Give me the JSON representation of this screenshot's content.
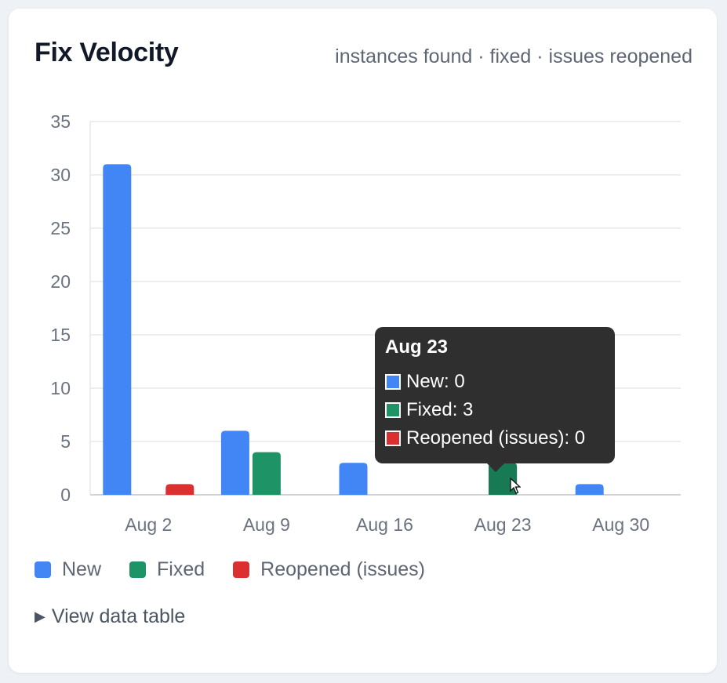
{
  "card": {
    "title": "Fix Velocity",
    "subtitle": "instances found · fixed · issues reopened"
  },
  "chart_data": {
    "type": "bar",
    "categories": [
      "Aug 2",
      "Aug 9",
      "Aug 16",
      "Aug 23",
      "Aug 30"
    ],
    "series": [
      {
        "name": "New",
        "color": "#4285f4",
        "values": [
          31,
          6,
          3,
          0,
          1
        ]
      },
      {
        "name": "Fixed",
        "color": "#1e9466",
        "values": [
          0,
          4,
          0,
          3,
          0
        ]
      },
      {
        "name": "Reopened (issues)",
        "color": "#dc2f2f",
        "values": [
          1,
          0,
          0,
          0,
          0
        ]
      }
    ],
    "ylim": [
      0,
      35
    ],
    "yticks": [
      0,
      5,
      10,
      15,
      20,
      25,
      30,
      35
    ],
    "grid": true,
    "legend_position": "bottom-left"
  },
  "tooltip": {
    "title": "Aug 23",
    "rows": [
      {
        "label": "New: 0",
        "color": "#4285f4"
      },
      {
        "label": "Fixed: 3",
        "color": "#1e9466"
      },
      {
        "label": "Reopened (issues): 0",
        "color": "#dc2f2f"
      }
    ],
    "highlight_color": "#0b2e22"
  },
  "legend": {
    "items": [
      {
        "label": "New",
        "color": "#4285f4"
      },
      {
        "label": "Fixed",
        "color": "#1e9466"
      },
      {
        "label": "Reopened (issues)",
        "color": "#dc2f2f"
      }
    ]
  },
  "details": {
    "label": "View data table"
  }
}
